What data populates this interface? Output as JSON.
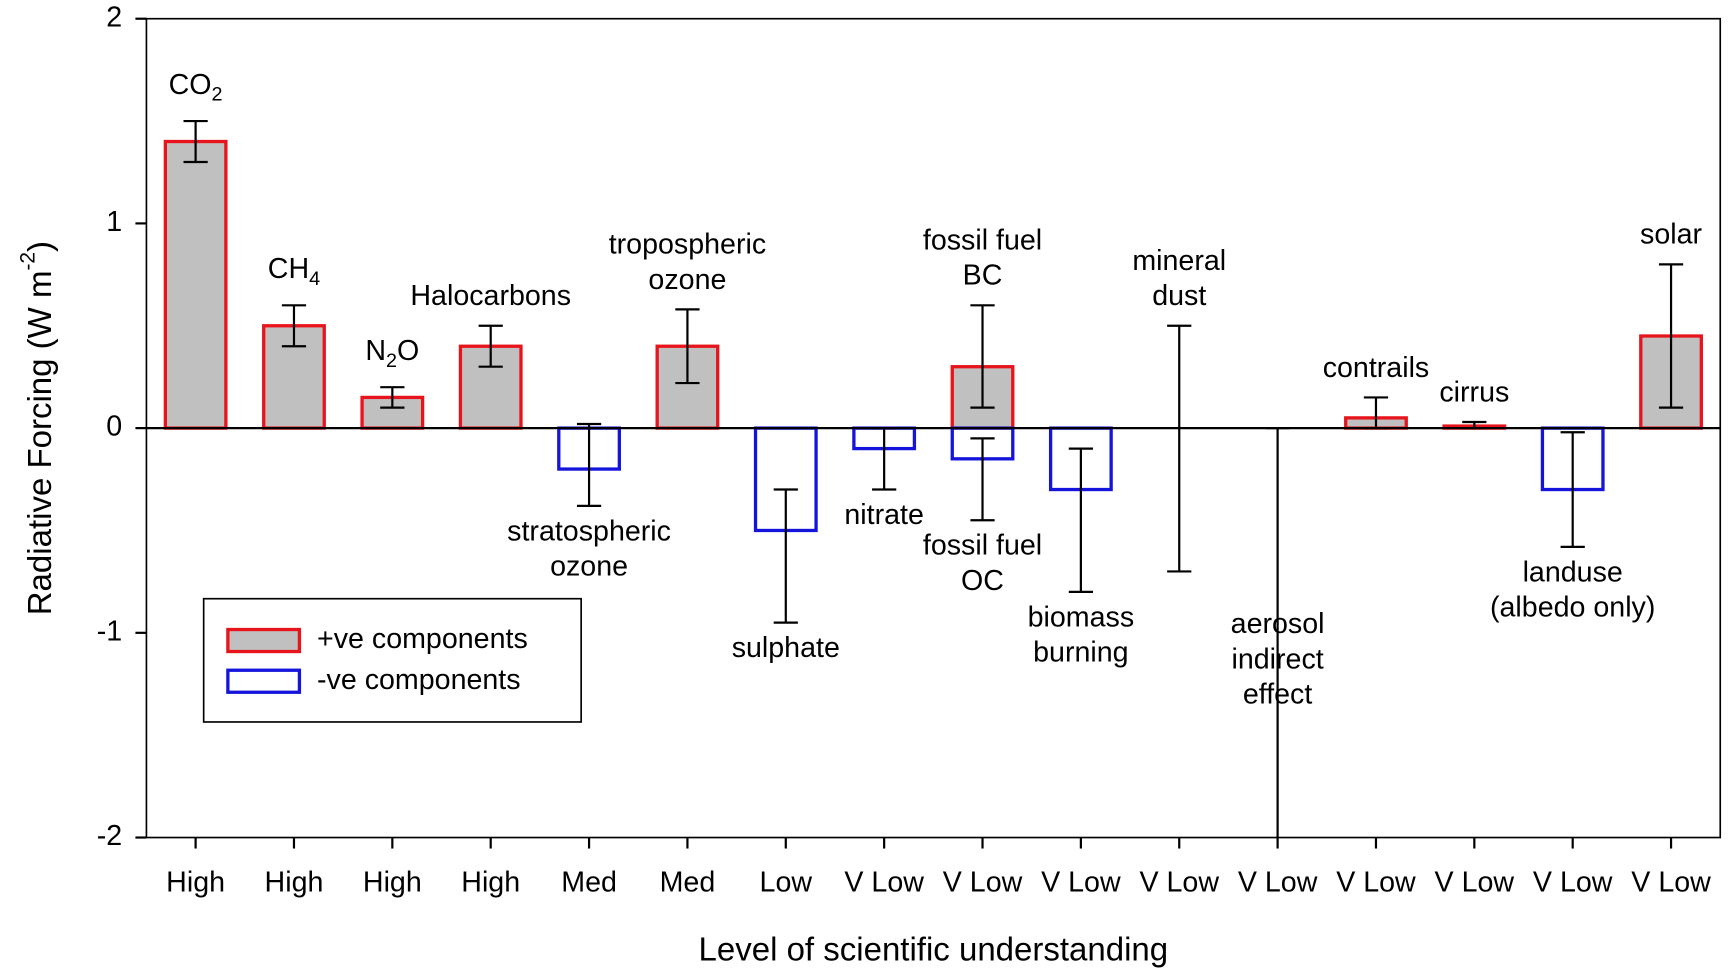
{
  "chart_data": {
    "type": "bar",
    "x_label": "Level of scientific understanding",
    "y_label": {
      "text": "Radiative Forcing (W m",
      "sup": "-2",
      "after": ")"
    },
    "categories": [
      "High",
      "High",
      "High",
      "High",
      "Med",
      "Med",
      "Low",
      "V Low",
      "V Low",
      "V Low",
      "V Low",
      "V Low",
      "V Low",
      "V Low",
      "V Low",
      "V Low"
    ],
    "ylim": [
      -2,
      2
    ],
    "yticks": [
      -2,
      -1,
      0,
      1,
      2
    ],
    "legend_position": "lower left",
    "legend": [
      {
        "name": "+ve components",
        "color": "#e8141b",
        "fill": "#c0c0c0"
      },
      {
        "name": "-ve components",
        "color": "#1414dc",
        "fill": "#ffffff"
      }
    ],
    "components": [
      {
        "position": 0,
        "group": 0,
        "value": 1.4,
        "range": [
          1.3,
          1.5
        ],
        "label": [
          {
            "text": "CO",
            "sub": "2",
            "after": ""
          }
        ]
      },
      {
        "position": 1,
        "group": 0,
        "value": 0.5,
        "range": [
          0.4,
          0.6
        ],
        "label": [
          {
            "text": "CH",
            "sub": "4",
            "after": ""
          }
        ]
      },
      {
        "position": 2,
        "group": 0,
        "value": 0.15,
        "range": [
          0.1,
          0.2
        ],
        "label": [
          {
            "text": "N",
            "sub": "2",
            "after": "O"
          }
        ]
      },
      {
        "position": 3,
        "group": 0,
        "value": 0.4,
        "range": [
          0.3,
          0.5
        ],
        "label": [
          {
            "text": "Halocarbons"
          }
        ]
      },
      {
        "position": 4,
        "group": 1,
        "value": -0.2,
        "range": [
          -0.38,
          0.02
        ],
        "label": [
          {
            "text": "stratospheric"
          },
          {
            "text": "ozone"
          }
        ]
      },
      {
        "position": 5,
        "group": 0,
        "value": 0.4,
        "range": [
          0.22,
          0.58
        ],
        "label": [
          {
            "text": "tropospheric"
          },
          {
            "text": "ozone"
          }
        ]
      },
      {
        "position": 6,
        "group": 1,
        "value": -0.5,
        "range": [
          -0.95,
          -0.3
        ],
        "label": [
          {
            "text": "sulphate"
          }
        ]
      },
      {
        "position": 7,
        "group": 1,
        "value": -0.1,
        "range": [
          -0.3,
          0
        ],
        "label": [
          {
            "text": "nitrate"
          }
        ]
      },
      {
        "position": 8,
        "group": 0,
        "value": 0.3,
        "range": [
          0.1,
          0.6
        ],
        "label": [
          {
            "text": "fossil fuel"
          },
          {
            "text": "BC"
          }
        ]
      },
      {
        "position": 8,
        "group": 1,
        "value": -0.15,
        "range": [
          -0.45,
          -0.05
        ],
        "label": [
          {
            "text": "fossil fuel"
          },
          {
            "text": "OC"
          }
        ]
      },
      {
        "position": 9,
        "group": 1,
        "value": -0.3,
        "range": [
          -0.8,
          -0.1
        ],
        "label": [
          {
            "text": "biomass"
          },
          {
            "text": "burning"
          }
        ]
      },
      {
        "position": 10,
        "group": null,
        "value": null,
        "range": [
          -0.7,
          0.5
        ],
        "label": [
          {
            "text": "mineral"
          },
          {
            "text": "dust"
          }
        ]
      },
      {
        "position": 11,
        "group": null,
        "value": null,
        "range": [
          -2,
          0
        ],
        "label": [
          {
            "text": "aerosol"
          },
          {
            "text": "indirect"
          },
          {
            "text": "effect"
          }
        ]
      },
      {
        "position": 12,
        "group": 0,
        "value": 0.05,
        "range": [
          0,
          0.15
        ],
        "label": [
          {
            "text": "contrails"
          }
        ]
      },
      {
        "position": 13,
        "group": 0,
        "value": 0.01,
        "range": [
          0,
          0.03
        ],
        "label": [
          {
            "text": "cirrus"
          }
        ]
      },
      {
        "position": 14,
        "group": 1,
        "value": -0.3,
        "range": [
          -0.58,
          -0.02
        ],
        "label": [
          {
            "text": "landuse"
          },
          {
            "text": "(albedo only)"
          }
        ]
      },
      {
        "position": 15,
        "group": 0,
        "value": 0.45,
        "range": [
          0.1,
          0.8
        ],
        "label": [
          {
            "text": "solar"
          }
        ]
      }
    ]
  }
}
